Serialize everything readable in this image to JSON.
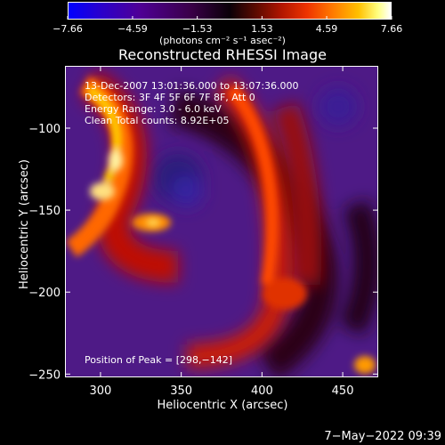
{
  "chart_data": {
    "type": "heatmap",
    "title": "Reconstructed RHESSI Image",
    "xlabel": "Heliocentric X (arcsec)",
    "ylabel": "Heliocentric Y (arcsec)",
    "xlim": [
      278,
      472
    ],
    "ylim": [
      -252,
      -62
    ],
    "xticks": [
      300,
      350,
      400,
      450
    ],
    "yticks": [
      -100,
      -150,
      -200,
      -250
    ],
    "colorbar": {
      "ticks": [
        -7.66,
        -4.59,
        -1.53,
        1.53,
        4.59,
        7.66
      ],
      "tick_labels": [
        "−7.66",
        "−4.59",
        "−1.53",
        "1.53",
        "4.59",
        "7.66"
      ],
      "unit_label": "(photons cm⁻² s⁻¹ asec⁻²)",
      "colors": [
        "#0000ff",
        "#4f0096",
        "#0a0008",
        "#b01500",
        "#ff7a00",
        "#ffffff"
      ]
    },
    "annotations": [
      "13-Dec-2007 13:01:36.000 to 13:07:36.000",
      "Detectors: 3F 4F 5F 6F 7F 8F, Att 0",
      "Energy Range: 3.0 - 6.0 keV",
      "Clean     Total counts: 8.92E+05"
    ],
    "peak_text": "Position of Peak = [298,−142]",
    "peak_position": [
      298,
      -142
    ]
  },
  "timestamp": "7−May−2022 09:39"
}
